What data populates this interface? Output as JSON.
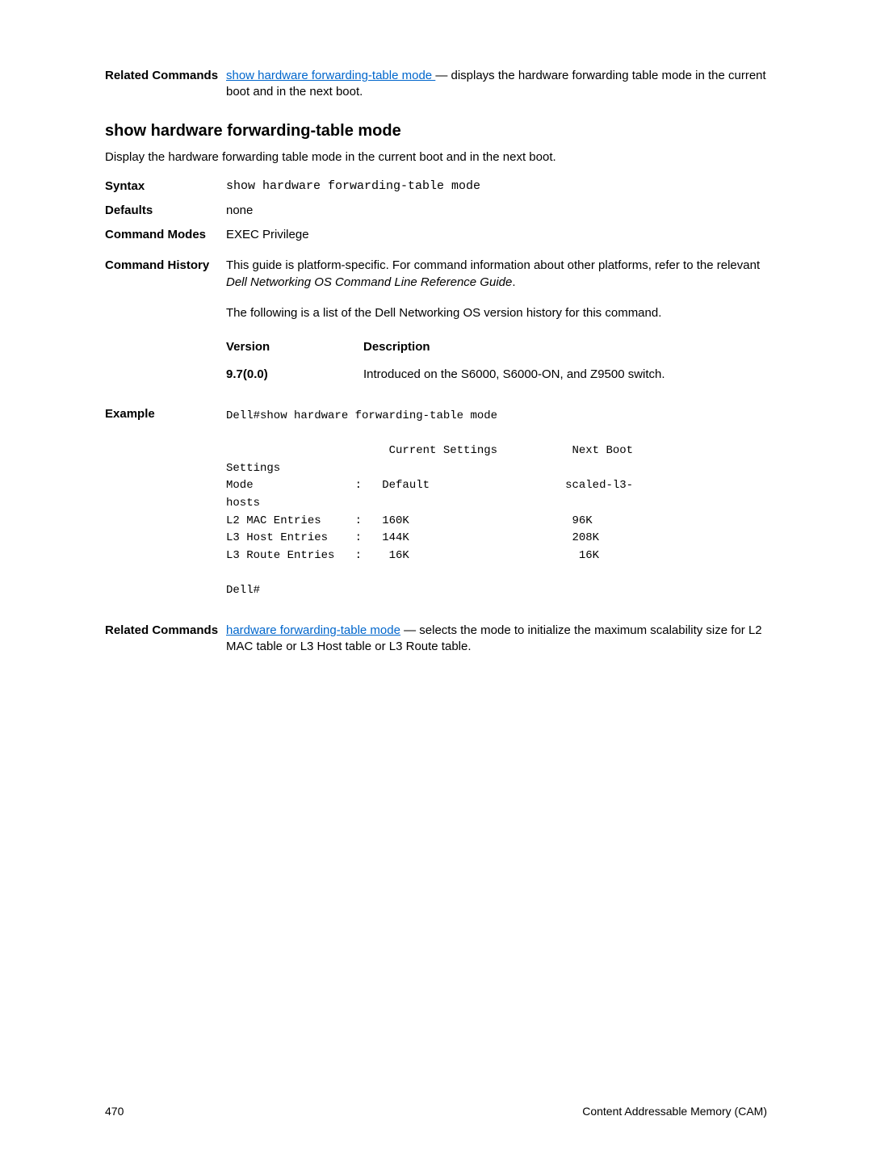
{
  "top_related": {
    "label": "Related Commands",
    "link_text": "show hardware forwarding-table mode ",
    "after_link": "— displays the hardware forwarding table mode in the current boot and in the next boot."
  },
  "heading": "show hardware forwarding-table mode",
  "desc": "Display the hardware forwarding table mode in the current boot and in the next boot.",
  "syntax": {
    "label": "Syntax",
    "value": "show hardware forwarding-table mode"
  },
  "defaults": {
    "label": "Defaults",
    "value": "none"
  },
  "command_modes": {
    "label": "Command Modes",
    "value": "EXEC Privilege"
  },
  "command_history": {
    "label": "Command History",
    "para1_pre": "This guide is platform-specific. For command information about other platforms, refer to the relevant ",
    "para1_italic": "Dell Networking OS Command Line Reference Guide",
    "para1_post": ".",
    "para2": "The following is a list of the Dell Networking OS version history for this command.",
    "header_version": "Version",
    "header_description": "Description",
    "row_version": "9.7(0.0)",
    "row_description": "Introduced on the S6000, S6000-ON, and Z9500 switch."
  },
  "example": {
    "label": "Example",
    "text": "Dell#show hardware forwarding-table mode\n\n                        Current Settings           Next Boot \nSettings\nMode               :   Default                    scaled-l3-\nhosts\nL2 MAC Entries     :   160K                        96K\nL3 Host Entries    :   144K                        208K\nL3 Route Entries   :    16K                         16K\n\nDell#"
  },
  "bottom_related": {
    "label": "Related Commands",
    "link_text": "hardware forwarding-table mode",
    "after_link": " — selects the mode to initialize the maximum scalability size for L2 MAC table or L3 Host table or L3 Route table."
  },
  "footer": {
    "page_num": "470",
    "right": "Content Addressable Memory (CAM)"
  }
}
